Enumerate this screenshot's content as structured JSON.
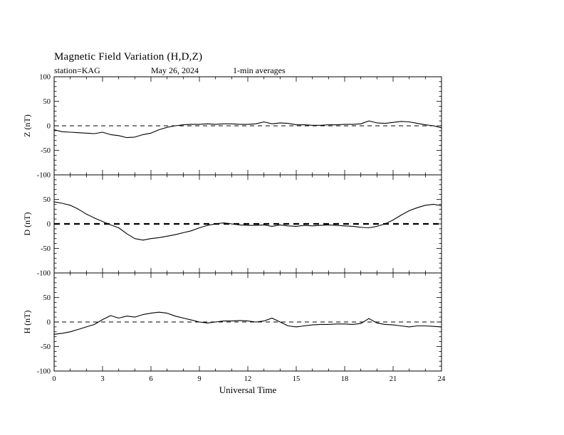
{
  "chart": {
    "title": "Magnetic Field Variation (H,D,Z)",
    "subtitle": {
      "station": "station=KAG",
      "date": "May 26, 2024",
      "note": "1-min averages"
    },
    "xlabel": "Universal Time"
  },
  "chart_data": {
    "type": "line",
    "title": "Magnetic Field Variation (H,D,Z)",
    "station": "station=KAG",
    "date": "May 26, 2024",
    "averaging": "1-min averages",
    "xlabel": "Universal Time",
    "xlim": [
      0,
      24
    ],
    "xticks": [
      0,
      3,
      6,
      9,
      12,
      15,
      18,
      21,
      24
    ],
    "ylim": [
      -100,
      100
    ],
    "yticks": [
      -100,
      -50,
      0,
      50,
      100
    ],
    "grid": false,
    "zero_line": "dashed",
    "line_color": "#000000",
    "x": [
      0,
      0.5,
      1,
      1.5,
      2,
      2.5,
      3,
      3.5,
      4,
      4.5,
      5,
      5.5,
      6,
      6.5,
      7,
      7.5,
      8,
      8.5,
      9,
      9.5,
      10,
      10.5,
      11,
      11.5,
      12,
      12.5,
      13,
      13.5,
      14,
      14.5,
      15,
      15.5,
      16,
      16.5,
      17,
      17.5,
      18,
      18.5,
      19,
      19.5,
      20,
      20.5,
      21,
      21.5,
      22,
      22.5,
      23,
      23.5,
      24
    ],
    "panels": [
      {
        "name": "Z",
        "ylabel": "Z (nT)",
        "values": [
          -8,
          -12,
          -13,
          -14,
          -15,
          -16,
          -13,
          -18,
          -20,
          -24,
          -23,
          -18,
          -15,
          -8,
          -3,
          0,
          2,
          3,
          3,
          4,
          3,
          4,
          4,
          3,
          3,
          4,
          8,
          4,
          6,
          5,
          2,
          2,
          1,
          1,
          2,
          2,
          3,
          3,
          4,
          10,
          6,
          5,
          7,
          9,
          8,
          5,
          2,
          0,
          -4
        ]
      },
      {
        "name": "D",
        "ylabel": "D (nT)",
        "values": [
          45,
          42,
          38,
          30,
          20,
          12,
          5,
          -2,
          -8,
          -20,
          -30,
          -33,
          -30,
          -28,
          -25,
          -22,
          -18,
          -14,
          -8,
          -3,
          0,
          2,
          0,
          -2,
          -3,
          -3,
          -2,
          -5,
          -2,
          -4,
          -5,
          -3,
          -4,
          -3,
          -2,
          -3,
          -4,
          -5,
          -7,
          -8,
          -5,
          0,
          8,
          18,
          27,
          33,
          38,
          40,
          37
        ]
      },
      {
        "name": "H",
        "ylabel": "H (nT)",
        "values": [
          -25,
          -23,
          -20,
          -15,
          -10,
          -5,
          5,
          13,
          8,
          12,
          10,
          15,
          18,
          20,
          18,
          12,
          8,
          4,
          0,
          -2,
          0,
          2,
          2,
          3,
          2,
          0,
          2,
          8,
          0,
          -8,
          -10,
          -8,
          -6,
          -5,
          -5,
          -4,
          -4,
          -5,
          -3,
          7,
          -2,
          -5,
          -6,
          -8,
          -10,
          -8,
          -8,
          -9,
          -10
        ]
      }
    ]
  }
}
